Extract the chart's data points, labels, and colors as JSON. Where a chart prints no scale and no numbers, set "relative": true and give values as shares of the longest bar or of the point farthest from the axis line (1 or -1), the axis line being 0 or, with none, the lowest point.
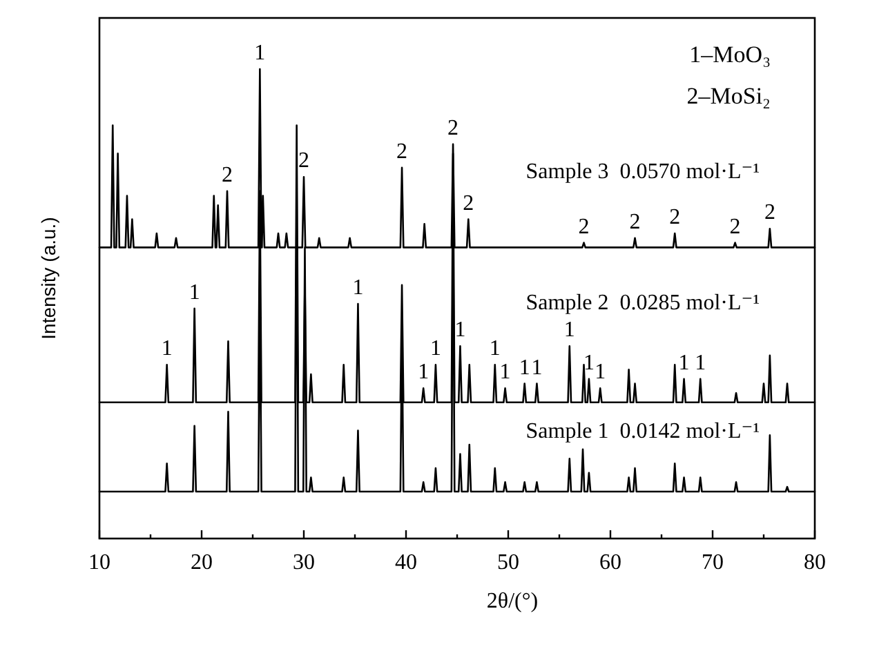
{
  "chart_data": {
    "type": "line",
    "relative": true,
    "xlabel": "2θ/(°)",
    "ylabel": "Intensity (a.u.)",
    "xlim": [
      10,
      80
    ],
    "xticks": [
      10,
      {
        "value": 15,
        "label": null
      },
      20,
      {
        "value": 25,
        "label": null
      },
      30,
      {
        "value": 35,
        "label": null
      },
      40,
      {
        "value": 45,
        "label": null
      },
      50,
      {
        "value": 55,
        "label": null
      },
      60,
      {
        "value": 65,
        "label": null
      },
      70,
      {
        "value": 75,
        "label": null
      },
      80
    ],
    "grid": false,
    "marker": "none",
    "line_style": "solid",
    "series": [
      {
        "name": "Sample 3  0.0570 mol·L⁻¹",
        "color": "#000000",
        "x": [
          10,
          11.15,
          11.3,
          11.45,
          11.65,
          11.8,
          11.95,
          12.55,
          12.7,
          12.85,
          13.05,
          13.2,
          13.35,
          15.45,
          15.6,
          15.75,
          17.35,
          17.5,
          17.65,
          21.05,
          21.2,
          21.35,
          21.45,
          21.6,
          21.75,
          22.35,
          22.5,
          22.65,
          25.55,
          25.7,
          25.85,
          25.9,
          26.0,
          26.15,
          27.35,
          27.5,
          27.65,
          28.15,
          28.3,
          28.45,
          29.85,
          30.0,
          30.15,
          31.35,
          31.5,
          31.65,
          34.35,
          34.5,
          34.65,
          39.45,
          39.6,
          39.75,
          41.65,
          41.8,
          41.95,
          44.45,
          44.6,
          44.75,
          45.95,
          46.1,
          46.25,
          57.25,
          57.4,
          57.55,
          62.25,
          62.4,
          62.55,
          66.15,
          66.3,
          66.45,
          72.05,
          72.2,
          72.35,
          75.45,
          75.6,
          75.75,
          80
        ],
        "values": [
          0.62,
          0.62,
          0.88,
          0.62,
          0.62,
          0.82,
          0.62,
          0.62,
          0.73,
          0.62,
          0.62,
          0.68,
          0.62,
          0.62,
          0.65,
          0.62,
          0.62,
          0.64,
          0.62,
          0.62,
          0.73,
          0.62,
          0.62,
          0.71,
          0.62,
          0.62,
          0.74,
          0.62,
          0.62,
          1,
          0.62,
          0.62,
          0.73,
          0.62,
          0.62,
          0.65,
          0.62,
          0.62,
          0.65,
          0.62,
          0.62,
          0.77,
          0.62,
          0.62,
          0.64,
          0.62,
          0.62,
          0.64,
          0.62,
          0.62,
          0.79,
          0.62,
          0.62,
          0.67,
          0.62,
          0.62,
          0.84,
          0.62,
          0.62,
          0.68,
          0.62,
          0.62,
          0.63,
          0.62,
          0.62,
          0.64,
          0.62,
          0.62,
          0.65,
          0.62,
          0.62,
          0.63,
          0.62,
          0.62,
          0.66,
          0.62,
          0.62
        ]
      },
      {
        "name": "Sample 2  0.0285 mol·L⁻¹",
        "color": "#000000",
        "x": [
          10,
          16.45,
          16.6,
          16.75,
          19.15,
          19.3,
          19.45,
          22.45,
          22.6,
          22.75,
          25.55,
          25.7,
          25.85,
          29.15,
          29.3,
          29.45,
          29.95,
          30.1,
          30.25,
          30.55,
          30.7,
          30.85,
          33.75,
          33.9,
          34.05,
          35.15,
          35.3,
          35.45,
          39.45,
          39.6,
          39.75,
          41.55,
          41.7,
          41.85,
          42.75,
          42.9,
          43.05,
          44.45,
          44.6,
          44.75,
          45.15,
          45.3,
          45.45,
          46.05,
          46.2,
          46.35,
          48.55,
          48.7,
          48.85,
          49.55,
          49.7,
          49.85,
          51.45,
          51.6,
          51.75,
          52.65,
          52.8,
          52.95,
          55.85,
          56.0,
          56.15,
          57.25,
          57.4,
          57.55,
          57.75,
          57.9,
          58.05,
          58.85,
          59.0,
          59.15,
          61.65,
          61.8,
          61.95,
          62.25,
          62.4,
          62.55,
          66.15,
          66.3,
          66.45,
          67.05,
          67.2,
          67.35,
          68.65,
          68.8,
          68.95,
          72.15,
          72.3,
          72.45,
          74.85,
          75.0,
          75.15,
          75.45,
          75.6,
          75.75,
          77.15,
          77.3,
          77.45,
          80
        ],
        "values": [
          0.29,
          0.29,
          0.37,
          0.29,
          0.29,
          0.49,
          0.29,
          0.29,
          0.42,
          0.29,
          0.29,
          0.74,
          0.29,
          0.29,
          0.88,
          0.29,
          0.29,
          0.54,
          0.29,
          0.29,
          0.35,
          0.29,
          0.29,
          0.37,
          0.29,
          0.29,
          0.5,
          0.29,
          0.29,
          0.54,
          0.29,
          0.29,
          0.32,
          0.29,
          0.29,
          0.37,
          0.29,
          0.29,
          0.82,
          0.29,
          0.29,
          0.41,
          0.29,
          0.29,
          0.37,
          0.29,
          0.29,
          0.37,
          0.29,
          0.29,
          0.32,
          0.29,
          0.29,
          0.33,
          0.29,
          0.29,
          0.33,
          0.29,
          0.29,
          0.41,
          0.29,
          0.29,
          0.37,
          0.29,
          0.29,
          0.34,
          0.29,
          0.29,
          0.32,
          0.29,
          0.29,
          0.36,
          0.29,
          0.29,
          0.33,
          0.29,
          0.29,
          0.37,
          0.29,
          0.29,
          0.34,
          0.29,
          0.29,
          0.34,
          0.29,
          0.29,
          0.31,
          0.29,
          0.29,
          0.33,
          0.29,
          0.29,
          0.39,
          0.29,
          0.29,
          0.33,
          0.29,
          0.29
        ]
      },
      {
        "name": "Sample 1  0.0142 mol·L⁻¹",
        "color": "#000000",
        "x": [
          10,
          16.45,
          16.6,
          16.75,
          19.15,
          19.3,
          19.45,
          22.45,
          22.6,
          22.75,
          25.55,
          25.7,
          25.85,
          29.15,
          29.3,
          29.45,
          29.95,
          30.1,
          30.25,
          30.55,
          30.7,
          30.85,
          33.75,
          33.9,
          34.05,
          35.15,
          35.3,
          35.45,
          39.45,
          39.6,
          39.75,
          41.55,
          41.7,
          41.85,
          42.75,
          42.9,
          43.05,
          44.45,
          44.6,
          44.75,
          45.15,
          45.3,
          45.45,
          46.05,
          46.2,
          46.35,
          48.55,
          48.7,
          48.85,
          49.55,
          49.7,
          49.85,
          51.45,
          51.6,
          51.75,
          52.65,
          52.8,
          52.95,
          55.85,
          56.0,
          56.15,
          57.15,
          57.3,
          57.45,
          57.75,
          57.9,
          58.05,
          61.65,
          61.8,
          61.95,
          62.25,
          62.4,
          62.55,
          66.15,
          66.3,
          66.45,
          67.05,
          67.2,
          67.35,
          68.65,
          68.8,
          68.95,
          72.15,
          72.3,
          72.45,
          75.45,
          75.6,
          75.75,
          77.15,
          77.3,
          77.45,
          80
        ],
        "values": [
          0.1,
          0.1,
          0.16,
          0.1,
          0.1,
          0.24,
          0.1,
          0.1,
          0.27,
          0.1,
          0.1,
          0.56,
          0.1,
          0.1,
          0.76,
          0.1,
          0.1,
          0.62,
          0.1,
          0.1,
          0.13,
          0.1,
          0.1,
          0.13,
          0.1,
          0.1,
          0.23,
          0.1,
          0.1,
          0.44,
          0.1,
          0.1,
          0.12,
          0.1,
          0.1,
          0.15,
          0.1,
          0.1,
          0.71,
          0.1,
          0.1,
          0.18,
          0.1,
          0.1,
          0.2,
          0.1,
          0.1,
          0.15,
          0.1,
          0.1,
          0.12,
          0.1,
          0.1,
          0.12,
          0.1,
          0.1,
          0.12,
          0.1,
          0.1,
          0.17,
          0.1,
          0.1,
          0.19,
          0.1,
          0.1,
          0.14,
          0.1,
          0.1,
          0.13,
          0.1,
          0.1,
          0.15,
          0.1,
          0.1,
          0.16,
          0.1,
          0.1,
          0.13,
          0.1,
          0.1,
          0.13,
          0.1,
          0.1,
          0.12,
          0.1,
          0.1,
          0.22,
          0.1,
          0.1,
          0.11,
          0.1,
          0.1
        ]
      }
    ],
    "annotations": [
      "1–MoO₃",
      "2–MoSi₂",
      {
        "text": "2",
        "x": 22.5,
        "y": 0.74
      },
      {
        "text": "1",
        "x": 25.7,
        "y": 1
      },
      {
        "text": "2",
        "x": 30.0,
        "y": 0.77
      },
      {
        "text": "2",
        "x": 39.6,
        "y": 0.79
      },
      {
        "text": "2",
        "x": 44.6,
        "y": 0.84
      },
      {
        "text": "2",
        "x": 46.1,
        "y": 0.68
      },
      {
        "text": "2",
        "x": 57.4,
        "y": 0.63
      },
      {
        "text": "2",
        "x": 62.4,
        "y": 0.64
      },
      {
        "text": "2",
        "x": 66.3,
        "y": 0.65
      },
      {
        "text": "2",
        "x": 72.2,
        "y": 0.63
      },
      {
        "text": "2",
        "x": 75.6,
        "y": 0.66
      },
      {
        "text": "1",
        "x": 16.6,
        "y": 0.37
      },
      {
        "text": "1",
        "x": 19.3,
        "y": 0.49
      },
      {
        "text": "1",
        "x": 35.3,
        "y": 0.5
      },
      {
        "text": "1",
        "x": 41.7,
        "y": 0.32
      },
      {
        "text": "1",
        "x": 42.9,
        "y": 0.37
      },
      {
        "text": "1",
        "x": 45.3,
        "y": 0.41
      },
      {
        "text": "1",
        "x": 48.7,
        "y": 0.37
      },
      {
        "text": "1",
        "x": 49.7,
        "y": 0.32
      },
      {
        "text": "1",
        "x": 51.6,
        "y": 0.33
      },
      {
        "text": "1",
        "x": 52.8,
        "y": 0.33
      },
      {
        "text": "1",
        "x": 56.0,
        "y": 0.41
      },
      {
        "text": "1",
        "x": 57.9,
        "y": 0.34
      },
      {
        "text": "1",
        "x": 59.0,
        "y": 0.32
      },
      {
        "text": "1",
        "x": 67.2,
        "y": 0.34
      },
      {
        "text": "1",
        "x": 68.8,
        "y": 0.34
      }
    ]
  }
}
